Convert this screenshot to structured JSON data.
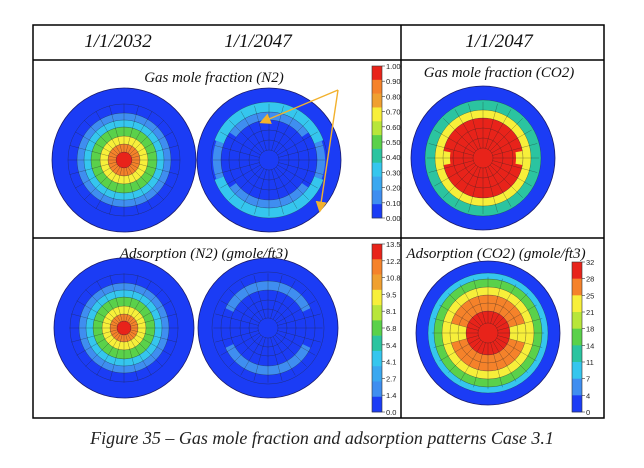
{
  "figure": {
    "headers": [
      "1/1/2032",
      "1/1/2047",
      "1/1/2047"
    ],
    "panels": {
      "n2_gas": {
        "title": "Gas mole fraction (N2)",
        "colorbar_ticks": [
          "1.00",
          "0.90",
          "0.80",
          "0.70",
          "0.60",
          "0.50",
          "0.40",
          "0.30",
          "0.20",
          "0.10",
          "0.00"
        ]
      },
      "co2_gas": {
        "title": "Gas mole fraction (CO2)"
      },
      "n2_ads": {
        "title": "Adsorption (N2) (gmole/ft3)",
        "colorbar_ticks": [
          "13.5",
          "12.2",
          "10.8",
          "9.5",
          "8.1",
          "6.8",
          "5.4",
          "4.1",
          "2.7",
          "1.4",
          "0.0"
        ]
      },
      "co2_ads": {
        "title": "Adsorption (CO2) (gmole/ft3)",
        "colorbar_ticks": [
          "32",
          "28",
          "25",
          "21",
          "18",
          "14",
          "11",
          "7",
          "4",
          "0"
        ]
      }
    },
    "caption": "Figure 35 – Gas mole fraction and adsorption patterns Case 3.1",
    "colors": {
      "red": "#e8231a",
      "orange": "#f5822a",
      "yellow": "#f7ef3a",
      "green": "#5ad14a",
      "teal": "#2bc4a0",
      "cyan": "#35c6ee",
      "lightblue": "#3f8ef0",
      "blue": "#1b3cf5",
      "arrow": "#f2b12d"
    }
  }
}
